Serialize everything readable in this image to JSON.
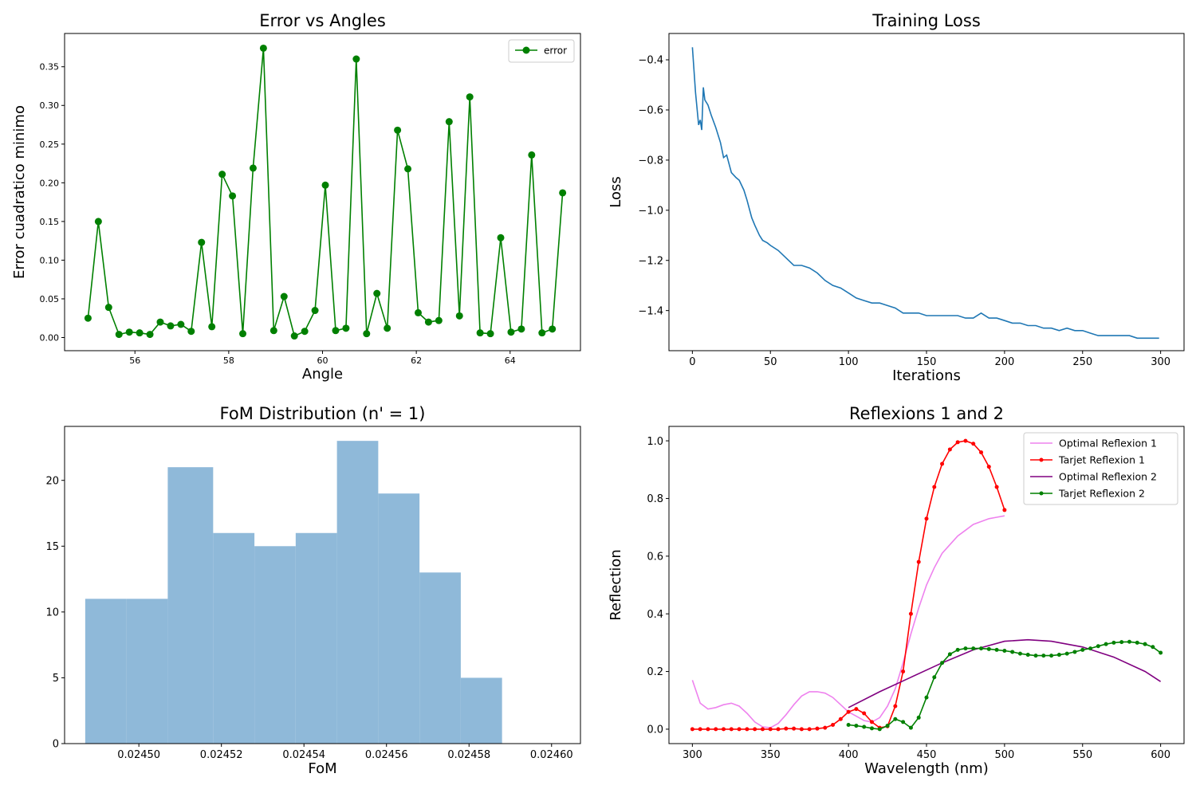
{
  "chart_data": [
    {
      "type": "line",
      "title": "Error vs Angles",
      "xlabel": "Angle",
      "ylabel": "Error cuadratico minimo",
      "xlim": [
        54.5,
        65.5
      ],
      "ylim": [
        -0.017,
        0.393
      ],
      "xticks": [
        56,
        58,
        60,
        62,
        64
      ],
      "yticks": [
        0.0,
        0.05,
        0.1,
        0.15,
        0.2,
        0.25,
        0.3,
        0.35
      ],
      "xtick_labels": [
        "56",
        "58",
        "60",
        "62",
        "64"
      ],
      "ytick_labels": [
        "0.00",
        "0.05",
        "0.10",
        "0.15",
        "0.20",
        "0.25",
        "0.30",
        "0.35"
      ],
      "legend_position": "top-right",
      "series": [
        {
          "name": "error",
          "color": "#008000",
          "marker": "circle",
          "x": [
            55.0,
            55.22,
            55.44,
            55.66,
            55.88,
            56.1,
            56.32,
            56.54,
            56.76,
            56.98,
            57.2,
            57.42,
            57.64,
            57.86,
            58.08,
            58.3,
            58.52,
            58.74,
            58.96,
            59.18,
            59.4,
            59.62,
            59.84,
            60.06,
            60.28,
            60.5,
            60.72,
            60.94,
            61.16,
            61.38,
            61.6,
            61.82,
            62.04,
            62.26,
            62.48,
            62.7,
            62.92,
            63.14,
            63.36,
            63.58,
            63.8,
            64.02,
            64.24,
            64.46,
            64.68,
            64.9,
            65.12
          ],
          "y": [
            0.025,
            0.15,
            0.039,
            0.004,
            0.007,
            0.006,
            0.004,
            0.02,
            0.015,
            0.017,
            0.008,
            0.123,
            0.014,
            0.211,
            0.183,
            0.005,
            0.219,
            0.374,
            0.009,
            0.053,
            0.002,
            0.008,
            0.035,
            0.197,
            0.009,
            0.012,
            0.36,
            0.005,
            0.057,
            0.012,
            0.268,
            0.218,
            0.032,
            0.02,
            0.022,
            0.279,
            0.028,
            0.311,
            0.006,
            0.005,
            0.129,
            0.007,
            0.011,
            0.236,
            0.006,
            0.011,
            0.187
          ]
        }
      ]
    },
    {
      "type": "line",
      "title": "Training Loss",
      "xlabel": "Iterations",
      "ylabel": "Loss",
      "xlim": [
        -15,
        315
      ],
      "ylim": [
        -1.56,
        -0.295
      ],
      "xticks": [
        0,
        50,
        100,
        150,
        200,
        250,
        300
      ],
      "yticks": [
        -1.4,
        -1.2,
        -1.0,
        -0.8,
        -0.6,
        -0.4
      ],
      "xtick_labels": [
        "0",
        "50",
        "100",
        "150",
        "200",
        "250",
        "300"
      ],
      "ytick_labels": [
        "−1.4",
        "−1.2",
        "−1.0",
        "−0.8",
        "−0.6",
        "−0.4"
      ],
      "series": [
        {
          "name": "",
          "color": "#1f77b4",
          "x": [
            0,
            2,
            4,
            5,
            6,
            7,
            8,
            10,
            12,
            15,
            18,
            20,
            22,
            25,
            28,
            30,
            33,
            35,
            38,
            40,
            43,
            45,
            48,
            50,
            55,
            60,
            65,
            70,
            75,
            80,
            85,
            90,
            95,
            100,
            105,
            110,
            115,
            120,
            125,
            130,
            135,
            140,
            145,
            150,
            155,
            160,
            165,
            170,
            175,
            180,
            185,
            190,
            195,
            200,
            205,
            210,
            215,
            220,
            225,
            230,
            235,
            240,
            245,
            250,
            255,
            260,
            265,
            270,
            275,
            280,
            285,
            290,
            295,
            299
          ],
          "y": [
            -0.35,
            -0.53,
            -0.66,
            -0.64,
            -0.68,
            -0.51,
            -0.56,
            -0.58,
            -0.62,
            -0.67,
            -0.73,
            -0.79,
            -0.78,
            -0.85,
            -0.87,
            -0.88,
            -0.92,
            -0.96,
            -1.03,
            -1.06,
            -1.1,
            -1.12,
            -1.13,
            -1.14,
            -1.16,
            -1.19,
            -1.22,
            -1.22,
            -1.23,
            -1.25,
            -1.28,
            -1.3,
            -1.31,
            -1.33,
            -1.35,
            -1.36,
            -1.37,
            -1.37,
            -1.38,
            -1.39,
            -1.41,
            -1.41,
            -1.41,
            -1.42,
            -1.42,
            -1.42,
            -1.42,
            -1.42,
            -1.43,
            -1.43,
            -1.41,
            -1.43,
            -1.43,
            -1.44,
            -1.45,
            -1.45,
            -1.46,
            -1.46,
            -1.47,
            -1.47,
            -1.48,
            -1.47,
            -1.48,
            -1.48,
            -1.49,
            -1.5,
            -1.5,
            -1.5,
            -1.5,
            -1.5,
            -1.51,
            -1.51,
            -1.51,
            -1.51
          ]
        }
      ]
    },
    {
      "type": "bar",
      "title": "FoM Distribution (n' = 1)",
      "xlabel": "FoM",
      "ylabel": "",
      "xlim": [
        0.024482,
        0.024607
      ],
      "ylim": [
        0,
        24.1
      ],
      "xticks": [
        0.0245,
        0.02452,
        0.02454,
        0.02456,
        0.02458,
        0.0246
      ],
      "yticks": [
        0,
        5,
        10,
        15,
        20
      ],
      "xtick_labels": [
        "0.02450",
        "0.02452",
        "0.02454",
        "0.02456",
        "0.02458",
        "0.02460"
      ],
      "ytick_labels": [
        "0",
        "5",
        "10",
        "15",
        "20"
      ],
      "bin_edges": [
        0.024487,
        0.024497,
        0.024507,
        0.024518,
        0.024528,
        0.024538,
        0.024548,
        0.024558,
        0.024568,
        0.024578,
        0.024588
      ],
      "values": [
        11,
        11,
        21,
        16,
        15,
        16,
        23,
        19,
        13,
        5
      ],
      "color": "#8fb9d9"
    },
    {
      "type": "line",
      "title": "Reflexions 1 and 2",
      "xlabel": "Wavelength (nm)",
      "ylabel": "Reflection",
      "xlim": [
        285,
        615
      ],
      "ylim": [
        -0.05,
        1.05
      ],
      "xticks": [
        300,
        350,
        400,
        450,
        500,
        550,
        600
      ],
      "yticks": [
        0.0,
        0.2,
        0.4,
        0.6,
        0.8,
        1.0
      ],
      "xtick_labels": [
        "300",
        "350",
        "400",
        "450",
        "500",
        "550",
        "600"
      ],
      "ytick_labels": [
        "0.0",
        "0.2",
        "0.4",
        "0.6",
        "0.8",
        "1.0"
      ],
      "legend_position": "top-right",
      "series": [
        {
          "name": "Optimal Reflexion 1",
          "color": "#ee82ee",
          "marker": "none",
          "x": [
            300,
            305,
            310,
            315,
            320,
            325,
            330,
            335,
            340,
            345,
            350,
            355,
            360,
            365,
            370,
            375,
            380,
            385,
            390,
            395,
            400,
            405,
            410,
            415,
            420,
            425,
            430,
            435,
            440,
            445,
            450,
            455,
            460,
            465,
            470,
            475,
            480,
            485,
            490,
            495,
            500
          ],
          "y": [
            0.17,
            0.09,
            0.07,
            0.075,
            0.085,
            0.09,
            0.08,
            0.055,
            0.025,
            0.008,
            0.005,
            0.02,
            0.05,
            0.085,
            0.115,
            0.13,
            0.13,
            0.125,
            0.11,
            0.085,
            0.06,
            0.045,
            0.03,
            0.025,
            0.04,
            0.08,
            0.14,
            0.23,
            0.33,
            0.42,
            0.5,
            0.56,
            0.61,
            0.64,
            0.67,
            0.69,
            0.71,
            0.72,
            0.73,
            0.735,
            0.74
          ]
        },
        {
          "name": "Tarjet Reflexion 1",
          "color": "#ff0000",
          "marker": "circle",
          "x": [
            300,
            305,
            310,
            315,
            320,
            325,
            330,
            335,
            340,
            345,
            350,
            355,
            360,
            365,
            370,
            375,
            380,
            385,
            390,
            395,
            400,
            405,
            410,
            415,
            420,
            425,
            430,
            435,
            440,
            445,
            450,
            455,
            460,
            465,
            470,
            475,
            480,
            485,
            490,
            495,
            500
          ],
          "y": [
            0.0,
            0.0,
            0.0,
            0.0,
            0.0,
            0.0,
            0.0,
            0.0,
            0.0,
            0.0,
            0.0,
            0.0,
            0.002,
            0.002,
            0.0,
            0.0,
            0.002,
            0.005,
            0.015,
            0.035,
            0.06,
            0.07,
            0.055,
            0.025,
            0.005,
            0.01,
            0.08,
            0.2,
            0.4,
            0.58,
            0.73,
            0.84,
            0.92,
            0.97,
            0.995,
            1.0,
            0.99,
            0.96,
            0.91,
            0.84,
            0.76
          ]
        },
        {
          "name": "Optimal Reflexion 2",
          "color": "#800080",
          "marker": "none",
          "x": [
            400,
            420,
            440,
            460,
            480,
            500,
            515,
            530,
            550,
            570,
            590,
            600
          ],
          "y": [
            0.075,
            0.13,
            0.18,
            0.23,
            0.275,
            0.305,
            0.31,
            0.305,
            0.285,
            0.25,
            0.2,
            0.165
          ]
        },
        {
          "name": "Tarjet Reflexion 2",
          "color": "#008000",
          "marker": "circle",
          "x": [
            400,
            405,
            410,
            415,
            420,
            425,
            430,
            435,
            440,
            445,
            450,
            455,
            460,
            465,
            470,
            475,
            480,
            485,
            490,
            495,
            500,
            505,
            510,
            515,
            520,
            525,
            530,
            535,
            540,
            545,
            550,
            555,
            560,
            565,
            570,
            575,
            580,
            585,
            590,
            595,
            600
          ],
          "y": [
            0.015,
            0.012,
            0.008,
            0.003,
            0.0,
            0.012,
            0.035,
            0.025,
            0.005,
            0.04,
            0.11,
            0.18,
            0.23,
            0.26,
            0.275,
            0.28,
            0.28,
            0.28,
            0.278,
            0.275,
            0.272,
            0.268,
            0.262,
            0.258,
            0.255,
            0.255,
            0.255,
            0.258,
            0.262,
            0.268,
            0.275,
            0.28,
            0.288,
            0.295,
            0.3,
            0.302,
            0.303,
            0.3,
            0.295,
            0.285,
            0.265
          ]
        }
      ]
    }
  ]
}
